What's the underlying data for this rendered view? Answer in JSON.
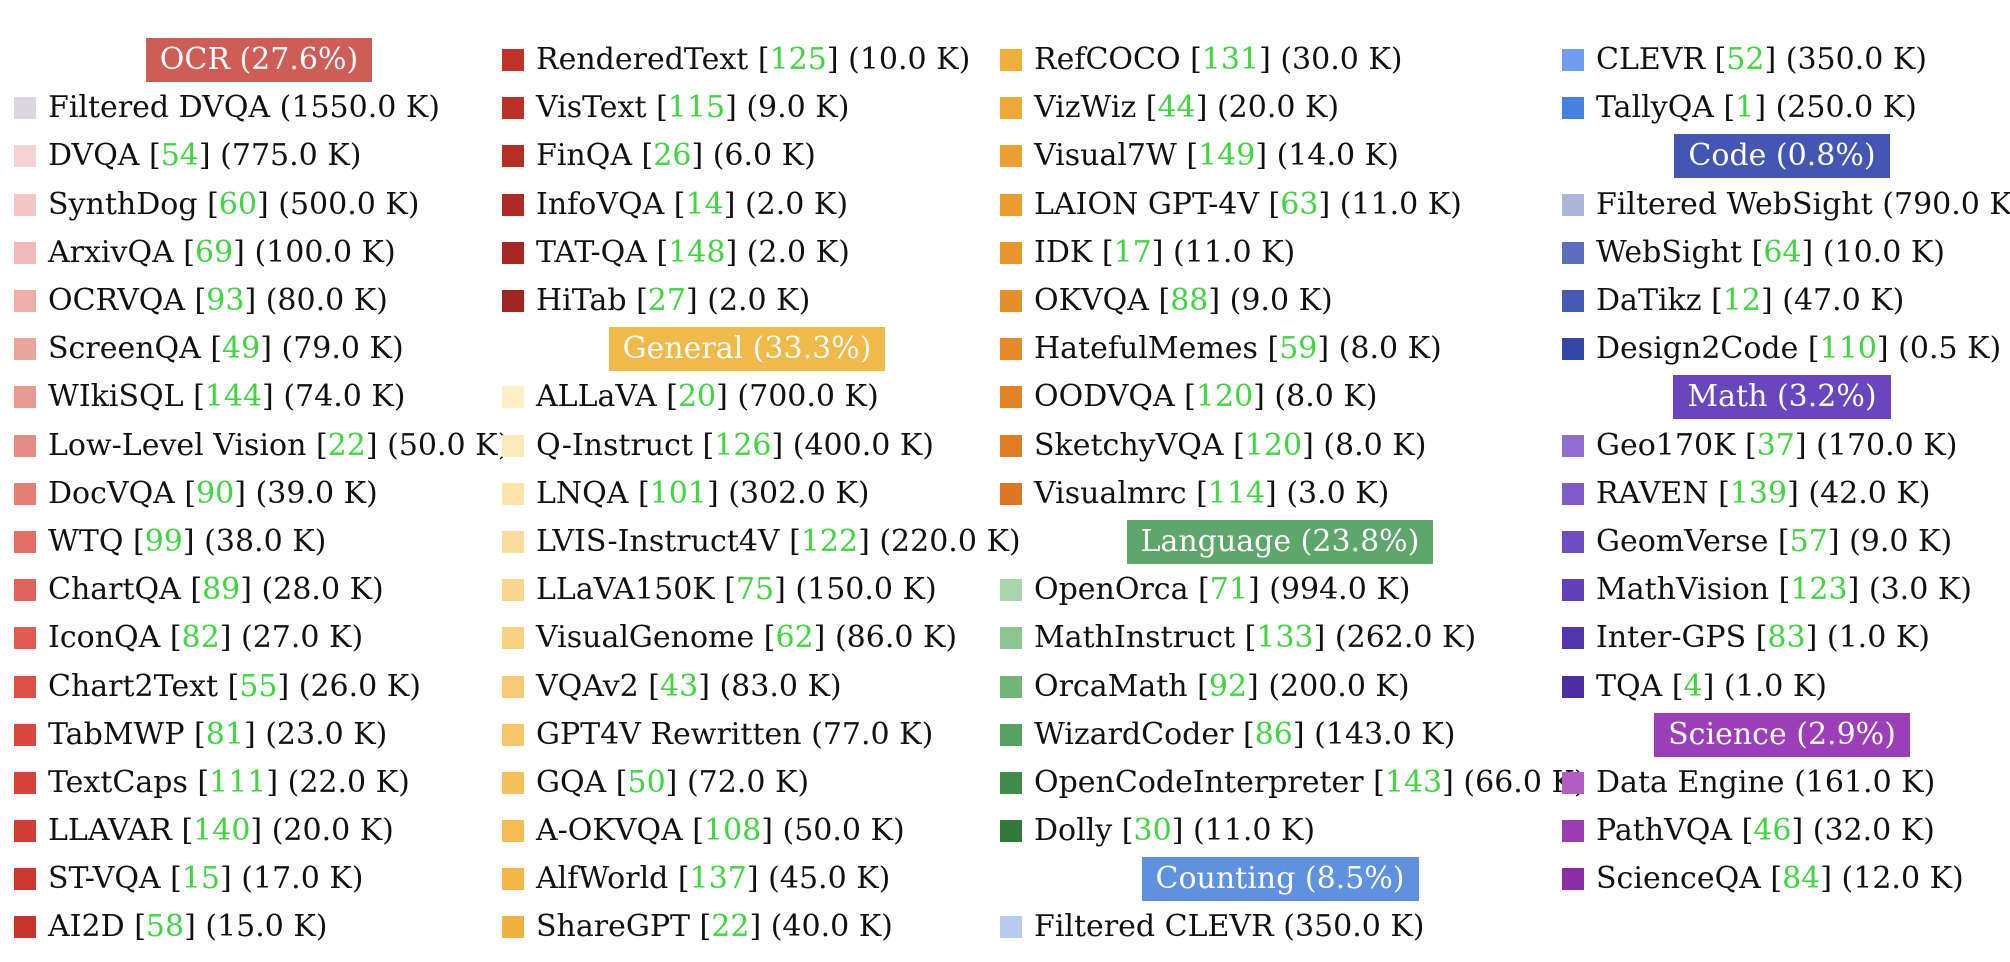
{
  "columns": [
    [
      {
        "kind": "header",
        "text": "OCR (27.6%)",
        "color": "#cf5d57"
      },
      {
        "kind": "item",
        "name": "Filtered DVQA",
        "ref": "",
        "size": "(1550.0 K)",
        "color": "#ddd8df"
      },
      {
        "kind": "item",
        "name": "DVQA",
        "ref": "54",
        "size": "(775.0 K)",
        "color": "#f5d3d3"
      },
      {
        "kind": "item",
        "name": "SynthDog",
        "ref": "60",
        "size": "(500.0 K)",
        "color": "#f3c6c6"
      },
      {
        "kind": "item",
        "name": "ArxivQA",
        "ref": "69",
        "size": "(100.0 K)",
        "color": "#f0baba"
      },
      {
        "kind": "item",
        "name": "OCRVQA",
        "ref": "93",
        "size": "(80.0 K)",
        "color": "#eeafab"
      },
      {
        "kind": "item",
        "name": "ScreenQA",
        "ref": "49",
        "size": "(79.0 K)",
        "color": "#eba59f"
      },
      {
        "kind": "item",
        "name": "WIkiSQL",
        "ref": "144",
        "size": "(74.0 K)",
        "color": "#e89990"
      },
      {
        "kind": "item",
        "name": "Low-Level Vision",
        "ref": "22",
        "size": "(50.0 K)",
        "color": "#e68c84"
      },
      {
        "kind": "item",
        "name": "DocVQA",
        "ref": "90",
        "size": "(39.0 K)",
        "color": "#e47d74"
      },
      {
        "kind": "item",
        "name": "WTQ",
        "ref": "99",
        "size": "(38.0 K)",
        "color": "#e27067"
      },
      {
        "kind": "item",
        "name": "ChartQA",
        "ref": "89",
        "size": "(28.0 K)",
        "color": "#e0645b"
      },
      {
        "kind": "item",
        "name": "IconQA",
        "ref": "82",
        "size": "(27.0 K)",
        "color": "#df5a50"
      },
      {
        "kind": "item",
        "name": "Chart2Text",
        "ref": "55",
        "size": "(26.0 K)",
        "color": "#dc5046"
      },
      {
        "kind": "item",
        "name": "TabMWP",
        "ref": "81",
        "size": "(23.0 K)",
        "color": "#d8483e"
      },
      {
        "kind": "item",
        "name": "TextCaps",
        "ref": "111",
        "size": "(22.0 K)",
        "color": "#d44339"
      },
      {
        "kind": "item",
        "name": "LLAVAR",
        "ref": "140",
        "size": "(20.0 K)",
        "color": "#cf3e34"
      },
      {
        "kind": "item",
        "name": "ST-VQA",
        "ref": "15",
        "size": "(17.0 K)",
        "color": "#cb3a30"
      },
      {
        "kind": "item",
        "name": "AI2D",
        "ref": "58",
        "size": "(15.0 K)",
        "color": "#c6362d"
      }
    ],
    [
      {
        "kind": "item",
        "name": "RenderedText",
        "ref": "125",
        "size": "(10.0 K)",
        "color": "#c1332a"
      },
      {
        "kind": "item",
        "name": "VisText",
        "ref": "115",
        "size": "(9.0 K)",
        "color": "#bb3028"
      },
      {
        "kind": "item",
        "name": "FinQA",
        "ref": "26",
        "size": "(6.0 K)",
        "color": "#b52e26"
      },
      {
        "kind": "item",
        "name": "InfoVQA",
        "ref": "14",
        "size": "(2.0 K)",
        "color": "#ae2b24"
      },
      {
        "kind": "item",
        "name": "TAT-QA",
        "ref": "148",
        "size": "(2.0 K)",
        "color": "#a72822"
      },
      {
        "kind": "item",
        "name": "HiTab",
        "ref": "27",
        "size": "(2.0 K)",
        "color": "#9f2520"
      },
      {
        "kind": "header",
        "text": "General (33.3%)",
        "color": "#f0b94a"
      },
      {
        "kind": "item",
        "name": "ALLaVA",
        "ref": "20",
        "size": "(700.0 K)",
        "color": "#fdf0c9"
      },
      {
        "kind": "item",
        "name": "Q-Instruct",
        "ref": "126",
        "size": "(400.0 K)",
        "color": "#fce9b9"
      },
      {
        "kind": "item",
        "name": "LNQA",
        "ref": "101",
        "size": "(302.0 K)",
        "color": "#fbe3aa"
      },
      {
        "kind": "item",
        "name": "LVIS-Instruct4V",
        "ref": "122",
        "size": "(220.0 K)",
        "color": "#fadd9c"
      },
      {
        "kind": "item",
        "name": "LLaVA150K",
        "ref": "75",
        "size": "(150.0 K)",
        "color": "#f9d78e"
      },
      {
        "kind": "item",
        "name": "VisualGenome",
        "ref": "62",
        "size": "(86.0 K)",
        "color": "#f8d181"
      },
      {
        "kind": "item",
        "name": "VQAv2",
        "ref": "43",
        "size": "(83.0 K)",
        "color": "#f7cb74"
      },
      {
        "kind": "item",
        "name": "GPT4V Rewritten",
        "ref": "",
        "size": "(77.0 K)",
        "color": "#f6c668"
      },
      {
        "kind": "item",
        "name": "GQA",
        "ref": "50",
        "size": "(72.0 K)",
        "color": "#f5c15d"
      },
      {
        "kind": "item",
        "name": "A-OKVQA",
        "ref": "108",
        "size": "(50.0 K)",
        "color": "#f4bc52"
      },
      {
        "kind": "item",
        "name": "AlfWorld",
        "ref": "137",
        "size": "(45.0 K)",
        "color": "#f3b748"
      },
      {
        "kind": "item",
        "name": "ShareGPT",
        "ref": "22",
        "size": "(40.0 K)",
        "color": "#f1b240"
      }
    ],
    [
      {
        "kind": "item",
        "name": "RefCOCO",
        "ref": "131",
        "size": "(30.0 K)",
        "color": "#efad3a"
      },
      {
        "kind": "item",
        "name": "VizWiz",
        "ref": "44",
        "size": "(20.0 K)",
        "color": "#eea836"
      },
      {
        "kind": "item",
        "name": "Visual7W",
        "ref": "149",
        "size": "(14.0 K)",
        "color": "#eca232"
      },
      {
        "kind": "item",
        "name": "LAION GPT-4V",
        "ref": "63",
        "size": "(11.0 K)",
        "color": "#ea9c2f"
      },
      {
        "kind": "item",
        "name": "IDK",
        "ref": "17",
        "size": "(11.0 K)",
        "color": "#e8962c"
      },
      {
        "kind": "item",
        "name": "OKVQA",
        "ref": "88",
        "size": "(9.0 K)",
        "color": "#e6902a"
      },
      {
        "kind": "item",
        "name": "HatefulMemes",
        "ref": "59",
        "size": "(8.0 K)",
        "color": "#e48a28"
      },
      {
        "kind": "item",
        "name": "OODVQA",
        "ref": "120",
        "size": "(8.0 K)",
        "color": "#e28426"
      },
      {
        "kind": "item",
        "name": "SketchyVQA",
        "ref": "120",
        "size": "(8.0 K)",
        "color": "#df7e24"
      },
      {
        "kind": "item",
        "name": "Visualmrc",
        "ref": "114",
        "size": "(3.0 K)",
        "color": "#dc7822"
      },
      {
        "kind": "header",
        "text": "Language (23.8%)",
        "color": "#5ea66b"
      },
      {
        "kind": "item",
        "name": "OpenOrca",
        "ref": "71",
        "size": "(994.0 K)",
        "color": "#a9d5ab"
      },
      {
        "kind": "item",
        "name": "MathInstruct",
        "ref": "133",
        "size": "(262.0 K)",
        "color": "#8cc790"
      },
      {
        "kind": "item",
        "name": "OrcaMath",
        "ref": "92",
        "size": "(200.0 K)",
        "color": "#6fb677"
      },
      {
        "kind": "item",
        "name": "WizardCoder",
        "ref": "86",
        "size": "(143.0 K)",
        "color": "#54a25f"
      },
      {
        "kind": "item",
        "name": "OpenCodeInterpreter",
        "ref": "143",
        "size": "(66.0 K)",
        "color": "#3f8d4b"
      },
      {
        "kind": "item",
        "name": "Dolly",
        "ref": "30",
        "size": "(11.0 K)",
        "color": "#2f7a3b"
      },
      {
        "kind": "header",
        "text": "Counting (8.5%)",
        "color": "#5e91e0"
      },
      {
        "kind": "item",
        "name": "Filtered CLEVR",
        "ref": "",
        "size": "(350.0 K)",
        "color": "#b8cbee"
      }
    ],
    [
      {
        "kind": "item",
        "name": "CLEVR",
        "ref": "52",
        "size": "(350.0 K)",
        "color": "#6f9ef0"
      },
      {
        "kind": "item",
        "name": "TallyQA",
        "ref": "1",
        "size": "(250.0 K)",
        "color": "#4680e0"
      },
      {
        "kind": "header",
        "text": "Code (0.8%)",
        "color": "#4356b3"
      },
      {
        "kind": "item",
        "name": "Filtered WebSight",
        "ref": "",
        "size": "(790.0 K)",
        "color": "#aeb6d8"
      },
      {
        "kind": "item",
        "name": "WebSight",
        "ref": "64",
        "size": "(10.0 K)",
        "color": "#5b6dbd"
      },
      {
        "kind": "item",
        "name": "DaTikz",
        "ref": "12",
        "size": "(47.0 K)",
        "color": "#4559b5"
      },
      {
        "kind": "item",
        "name": "Design2Code",
        "ref": "110",
        "size": "(0.5 K)",
        "color": "#3547a6"
      },
      {
        "kind": "header",
        "text": "Math (3.2%)",
        "color": "#6a45c0"
      },
      {
        "kind": "item",
        "name": "Geo170K",
        "ref": "37",
        "size": "(170.0 K)",
        "color": "#8e6fd0"
      },
      {
        "kind": "item",
        "name": "RAVEN",
        "ref": "139",
        "size": "(42.0 K)",
        "color": "#7e5cc9"
      },
      {
        "kind": "item",
        "name": "GeomVerse",
        "ref": "57",
        "size": "(9.0 K)",
        "color": "#6e4cc1"
      },
      {
        "kind": "item",
        "name": "MathVision",
        "ref": "123",
        "size": "(3.0 K)",
        "color": "#603fb8"
      },
      {
        "kind": "item",
        "name": "Inter-GPS",
        "ref": "83",
        "size": "(1.0 K)",
        "color": "#5535ad"
      },
      {
        "kind": "item",
        "name": "TQA",
        "ref": "4",
        "size": "(1.0 K)",
        "color": "#4a2ea2"
      },
      {
        "kind": "header",
        "text": "Science (2.9%)",
        "color": "#9a3fb8"
      },
      {
        "kind": "item",
        "name": "Data Engine",
        "ref": "",
        "size": "(161.0 K)",
        "color": "#b25dc4"
      },
      {
        "kind": "item",
        "name": "PathVQA",
        "ref": "46",
        "size": "(32.0 K)",
        "color": "#9c3cb4"
      },
      {
        "kind": "item",
        "name": "ScienceQA",
        "ref": "84",
        "size": "(12.0 K)",
        "color": "#8b2ea6"
      }
    ]
  ]
}
